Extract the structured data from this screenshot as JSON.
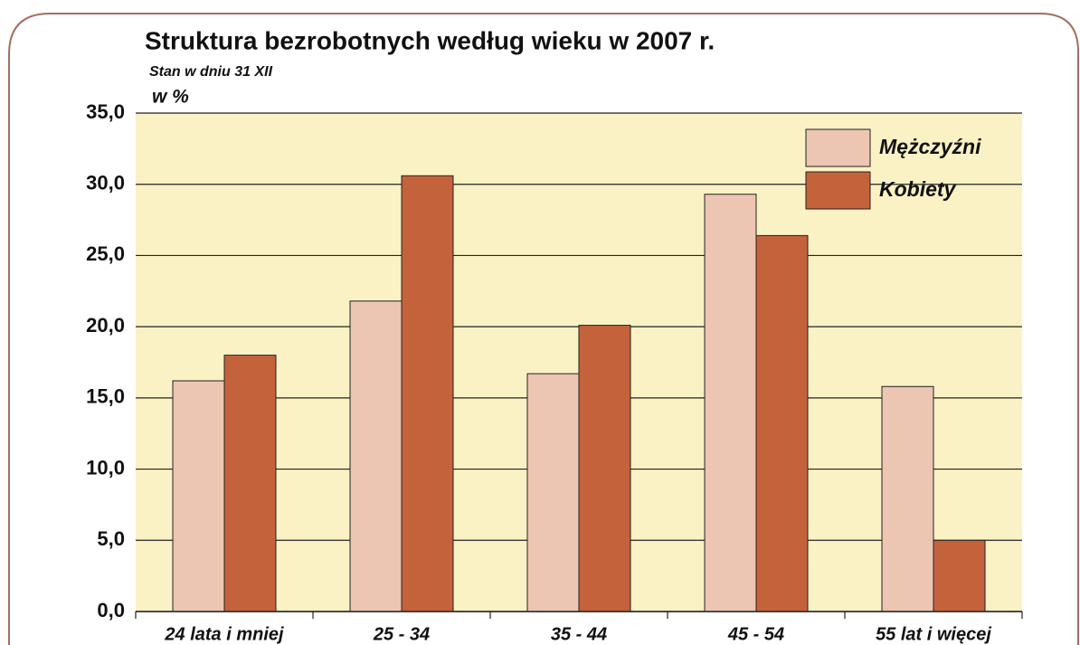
{
  "chart_data": {
    "type": "bar",
    "title": "Struktura bezrobotnych według  wieku w 2007 r.",
    "subtitle": "Stan w dniu 31 XII",
    "y_label": "w %",
    "categories": [
      "24 lata i mniej",
      "25 - 34",
      "35 - 44",
      "45 - 54",
      "55 lat i więcej"
    ],
    "series": [
      {
        "name": "Mężczyźni",
        "color": "#ecc5b3",
        "values": [
          16.2,
          21.8,
          16.7,
          29.3,
          15.8
        ]
      },
      {
        "name": "Kobiety",
        "color": "#c4623c",
        "values": [
          18.0,
          30.6,
          20.1,
          26.4,
          5.0
        ]
      }
    ],
    "ylim": [
      0,
      35
    ],
    "yticks": [
      {
        "value": 0,
        "label": "0,0"
      },
      {
        "value": 5,
        "label": "5,0"
      },
      {
        "value": 10,
        "label": "10,0"
      },
      {
        "value": 15,
        "label": "15,0"
      },
      {
        "value": 20,
        "label": "20,0"
      },
      {
        "value": 25,
        "label": "25,0"
      },
      {
        "value": 30,
        "label": "30,0"
      },
      {
        "value": 35,
        "label": "35,0"
      }
    ],
    "grid": true,
    "legend": "top-right"
  }
}
